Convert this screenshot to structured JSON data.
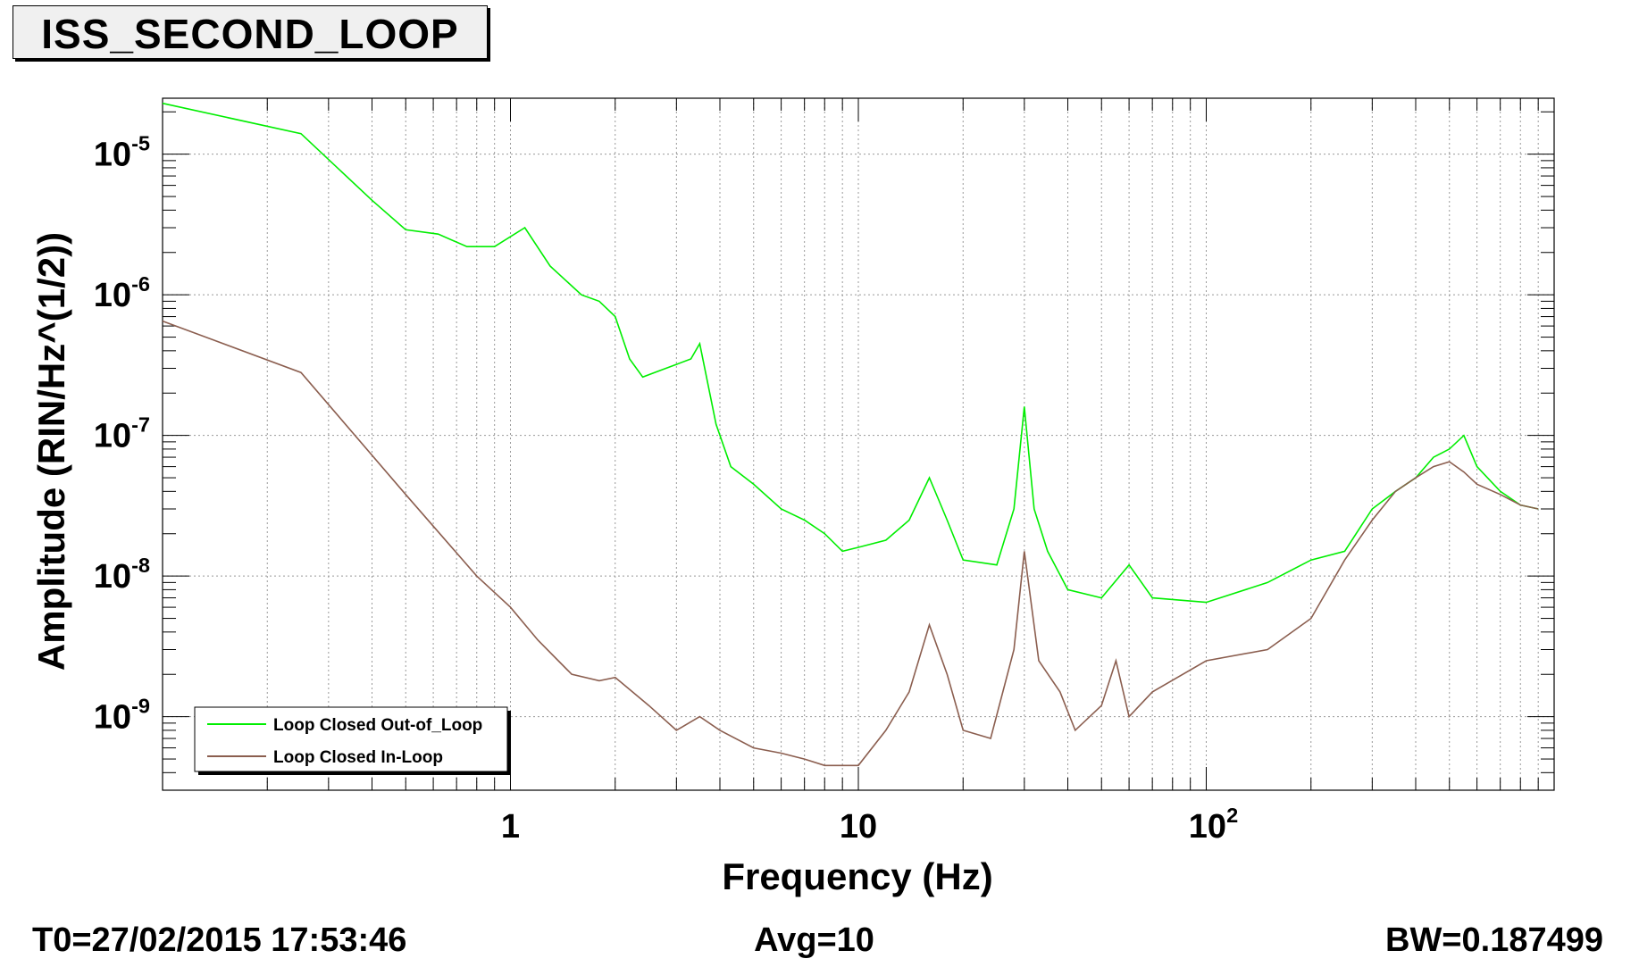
{
  "title": "ISS_SECOND_LOOP",
  "footer": {
    "t0": "T0=27/02/2015 17:53:46",
    "avg": "Avg=10",
    "bw": "BW=0.187499"
  },
  "chart_data": {
    "type": "line",
    "title": "ISS_SECOND_LOOP",
    "xlabel": "Frequency (Hz)",
    "ylabel": "Amplitude (RIN/Hz^(1/2))",
    "xscale": "log",
    "yscale": "log",
    "xlim": [
      0.1,
      1000
    ],
    "ylim": [
      3e-10,
      2.5e-05
    ],
    "grid": true,
    "legend_position": "bottom-left",
    "x_tick_labels": [
      {
        "value": 1,
        "base": "1",
        "exp": ""
      },
      {
        "value": 10,
        "base": "10",
        "exp": ""
      },
      {
        "value": 100,
        "base": "10",
        "exp": "2"
      }
    ],
    "y_tick_labels": [
      {
        "value": 1e-05,
        "base": "10",
        "exp": "-5"
      },
      {
        "value": 1e-06,
        "base": "10",
        "exp": "-6"
      },
      {
        "value": 1e-07,
        "base": "10",
        "exp": "-7"
      },
      {
        "value": 1e-08,
        "base": "10",
        "exp": "-8"
      },
      {
        "value": 1e-09,
        "base": "10",
        "exp": "-9"
      }
    ],
    "series": [
      {
        "name": "Loop Closed Out-of_Loop",
        "color": "#00ee00",
        "x": [
          0.1,
          0.25,
          0.4,
          0.5,
          0.62,
          0.75,
          0.9,
          1.1,
          1.3,
          1.6,
          1.8,
          2.0,
          2.2,
          2.4,
          2.7,
          3.0,
          3.3,
          3.5,
          3.9,
          4.3,
          5.0,
          6.0,
          7.0,
          8.0,
          9.0,
          10.0,
          12.0,
          14.0,
          16.0,
          17.0,
          18.0,
          20.0,
          25.0,
          28.0,
          30.0,
          32.0,
          35.0,
          40.0,
          50.0,
          60.0,
          70.0,
          100.0,
          150.0,
          200.0,
          250.0,
          300.0,
          350.0,
          400.0,
          450.0,
          500.0,
          550.0,
          600.0,
          700.0,
          800.0,
          900.0
        ],
        "y": [
          2.3e-05,
          1.4e-05,
          4.7e-06,
          2.9e-06,
          2.7e-06,
          2.2e-06,
          2.2e-06,
          3e-06,
          1.6e-06,
          1e-06,
          9e-07,
          7e-07,
          3.5e-07,
          2.6e-07,
          2.9e-07,
          3.2e-07,
          3.5e-07,
          4.5e-07,
          1.2e-07,
          6e-08,
          4.5e-08,
          3e-08,
          2.5e-08,
          2e-08,
          1.5e-08,
          1.6e-08,
          1.8e-08,
          2.5e-08,
          5e-08,
          3.5e-08,
          2.5e-08,
          1.3e-08,
          1.2e-08,
          3e-08,
          1.6e-07,
          3e-08,
          1.5e-08,
          8e-09,
          7e-09,
          1.2e-08,
          7e-09,
          6.5e-09,
          9e-09,
          1.3e-08,
          1.5e-08,
          3e-08,
          4e-08,
          5e-08,
          7e-08,
          8e-08,
          1e-07,
          6e-08,
          4e-08,
          3.2e-08,
          3e-08
        ]
      },
      {
        "name": "Loop Closed In-Loop",
        "color": "#8b5e4f",
        "x": [
          0.1,
          0.25,
          0.5,
          0.8,
          1.0,
          1.2,
          1.5,
          1.8,
          2.0,
          2.5,
          3.0,
          3.5,
          4.0,
          5.0,
          6.0,
          7.0,
          8.0,
          9.0,
          10.0,
          12.0,
          14.0,
          16.0,
          18.0,
          20.0,
          24.0,
          28.0,
          30.0,
          33.0,
          38.0,
          42.0,
          50.0,
          55.0,
          60.0,
          70.0,
          100.0,
          150.0,
          200.0,
          250.0,
          300.0,
          350.0,
          400.0,
          450.0,
          500.0,
          550.0,
          600.0,
          700.0,
          800.0,
          900.0
        ],
        "y": [
          6.5e-07,
          2.8e-07,
          3.8e-08,
          1e-08,
          6e-09,
          3.5e-09,
          2e-09,
          1.8e-09,
          1.9e-09,
          1.2e-09,
          8e-10,
          1e-09,
          8e-10,
          6e-10,
          5.5e-10,
          5e-10,
          4.5e-10,
          4.5e-10,
          4.5e-10,
          8e-10,
          1.5e-09,
          4.5e-09,
          2e-09,
          8e-10,
          7e-10,
          3e-09,
          1.5e-08,
          2.5e-09,
          1.5e-09,
          8e-10,
          1.2e-09,
          2.5e-09,
          1e-09,
          1.5e-09,
          2.5e-09,
          3e-09,
          5e-09,
          1.3e-08,
          2.5e-08,
          4e-08,
          5e-08,
          6e-08,
          6.5e-08,
          5.5e-08,
          4.5e-08,
          3.8e-08,
          3.2e-08,
          3e-08
        ]
      }
    ]
  }
}
